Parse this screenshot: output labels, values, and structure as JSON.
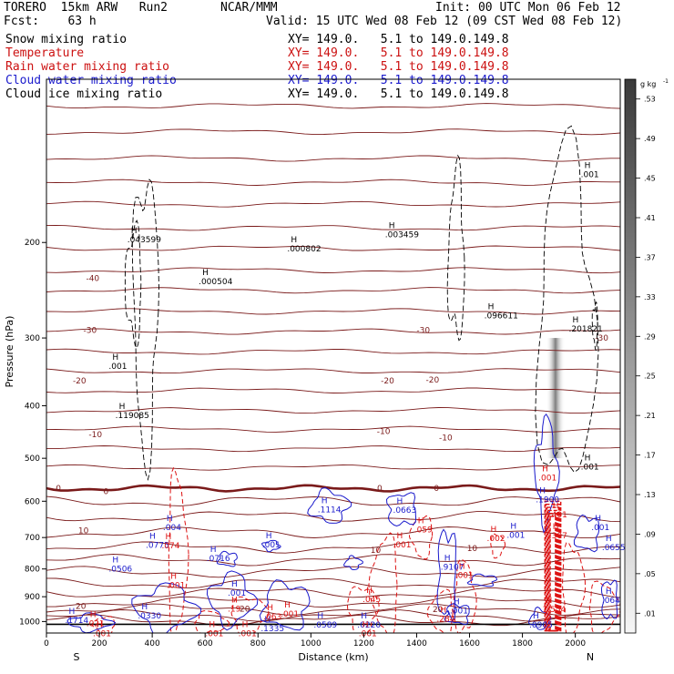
{
  "header": {
    "left1": "TORERO  15km ARW   Run2",
    "center1": "NCAR/MMM",
    "right1": "Init: 00 UTC Mon 06 Feb 12",
    "left2": "Fcst:    63 h",
    "right2": "Valid: 15 UTC Wed 08 Feb 12 (09 CST Wed 08 Feb 12)"
  },
  "legend": [
    {
      "name": "Snow mixing ratio",
      "xy": "XY= 149.0.   5.1 to 149.0.149.8",
      "color": "#000000"
    },
    {
      "name": "Temperature",
      "xy": "XY= 149.0.   5.1 to 149.0.149.8",
      "color": "#cc1111"
    },
    {
      "name": "Rain water mixing ratio",
      "xy": "XY= 149.0.   5.1 to 149.0.149.8",
      "color": "#cc1111"
    },
    {
      "name": "Cloud water mixing ratio",
      "xy": "XY= 149.0.   5.1 to 149.0.149.8",
      "color": "#1a1acc"
    },
    {
      "name": "Cloud ice mixing ratio",
      "xy": "XY= 149.0.   5.1 to 149.0.149.8",
      "color": "#000000"
    }
  ],
  "colors": {
    "temperature_isotherm": "#7a1a1a",
    "freezing_line": "#7a1a1a",
    "rain": "#dd1111",
    "cloud_water": "#1a1acc",
    "snow_shading": "#555555",
    "cloud_ice": "#000000"
  },
  "chart_data": {
    "type": "cross-section",
    "xlabel": "Distance (km)",
    "ylabel": "Pressure (hPa)",
    "xlim": [
      0,
      2170
    ],
    "ylim": [
      1050,
      100
    ],
    "y_log": true,
    "x_ticks": [
      0,
      200,
      400,
      600,
      800,
      1000,
      1200,
      1400,
      1600,
      1800,
      2000
    ],
    "y_ticks": [
      200,
      300,
      400,
      500,
      600,
      700,
      800,
      900,
      1000
    ],
    "x_end_labels": {
      "left": "S",
      "right": "N"
    },
    "colorbar": {
      "unit": "g kg",
      "unit_exp": "-1",
      "labels": [
        ".53",
        ".49",
        ".45",
        ".41",
        ".37",
        ".33",
        ".29",
        ".25",
        ".21",
        ".17",
        ".13",
        ".09",
        ".05",
        ".01"
      ]
    },
    "isotherm_labels": [
      {
        "x": 175,
        "p": 233,
        "t": "-40"
      },
      {
        "x": 165,
        "p": 290,
        "t": "-30"
      },
      {
        "x": 1425,
        "p": 290,
        "t": "-30"
      },
      {
        "x": 2100,
        "p": 300,
        "t": "-30"
      },
      {
        "x": 125,
        "p": 360,
        "t": "-20"
      },
      {
        "x": 1290,
        "p": 360,
        "t": "-20"
      },
      {
        "x": 1460,
        "p": 358,
        "t": "-20"
      },
      {
        "x": 185,
        "p": 452,
        "t": "-10"
      },
      {
        "x": 1275,
        "p": 446,
        "t": "-10"
      },
      {
        "x": 1510,
        "p": 458,
        "t": "-10"
      },
      {
        "x": 45,
        "p": 568,
        "t": "0"
      },
      {
        "x": 225,
        "p": 576,
        "t": "0"
      },
      {
        "x": 1260,
        "p": 568,
        "t": "0"
      },
      {
        "x": 1475,
        "p": 568,
        "t": "0"
      },
      {
        "x": 140,
        "p": 680,
        "t": "10"
      },
      {
        "x": 1245,
        "p": 738,
        "t": "10"
      },
      {
        "x": 1610,
        "p": 733,
        "t": "10"
      },
      {
        "x": 130,
        "p": 937,
        "t": "20"
      },
      {
        "x": 750,
        "p": 948,
        "t": "20"
      },
      {
        "x": 1480,
        "p": 950,
        "t": "20"
      }
    ],
    "maxima_labels": [
      {
        "x": 340,
        "p": 199,
        "v": ".043599",
        "color": "black"
      },
      {
        "x": 610,
        "p": 238,
        "v": ".000504",
        "color": "black"
      },
      {
        "x": 945,
        "p": 207,
        "v": ".000802",
        "color": "black"
      },
      {
        "x": 1315,
        "p": 195,
        "v": ".003459",
        "color": "black"
      },
      {
        "x": 1690,
        "p": 275,
        "v": ".096611",
        "color": "black"
      },
      {
        "x": 2010,
        "p": 291,
        "v": ".201821",
        "color": "black"
      },
      {
        "x": 2055,
        "p": 151,
        "v": ".001",
        "color": "black"
      },
      {
        "x": 270,
        "p": 341,
        "v": ".001",
        "color": "black"
      },
      {
        "x": 295,
        "p": 420,
        "v": ".119085",
        "color": "black"
      },
      {
        "x": 2055,
        "p": 522,
        "v": ".001",
        "color": "black"
      },
      {
        "x": 1060,
        "p": 626,
        "v": ".1114",
        "color": "blue"
      },
      {
        "x": 1345,
        "p": 628,
        "v": ".0663",
        "color": "blue"
      },
      {
        "x": 475,
        "p": 676,
        "v": ".004",
        "color": "blue"
      },
      {
        "x": 410,
        "p": 729,
        "v": ".0775",
        "color": "blue"
      },
      {
        "x": 640,
        "p": 771,
        "v": ".0716",
        "color": "blue"
      },
      {
        "x": 850,
        "p": 727,
        "v": ".001",
        "color": "blue"
      },
      {
        "x": 270,
        "p": 806,
        "v": ".0506",
        "color": "blue"
      },
      {
        "x": 1525,
        "p": 800,
        "v": ".9107",
        "color": "blue"
      },
      {
        "x": 1775,
        "p": 698,
        "v": ".001",
        "color": "blue"
      },
      {
        "x": 2095,
        "p": 676,
        "v": ".001",
        "color": "blue"
      },
      {
        "x": 2135,
        "p": 735,
        "v": ".0655",
        "color": "blue"
      },
      {
        "x": 720,
        "p": 892,
        "v": ".001",
        "color": "blue"
      },
      {
        "x": 380,
        "p": 983,
        "v": ".0330",
        "color": "blue"
      },
      {
        "x": 105,
        "p": 1002,
        "v": ".1714",
        "color": "blue"
      },
      {
        "x": 1045,
        "p": 1021,
        "v": ".0589",
        "color": "blue"
      },
      {
        "x": 1210,
        "p": 1021,
        "v": ".0220",
        "color": "blue"
      },
      {
        "x": 845,
        "p": 1038,
        "v": ".1335",
        "color": "blue"
      },
      {
        "x": 1560,
        "p": 963,
        "v": ".001",
        "color": "blue"
      },
      {
        "x": 1860,
        "p": 1021,
        "v": ".0905",
        "color": "blue"
      },
      {
        "x": 2135,
        "p": 920,
        "v": ".064",
        "color": "blue"
      },
      {
        "x": 1885,
        "p": 600,
        "v": ".1900",
        "color": "blue"
      },
      {
        "x": 1425,
        "p": 682,
        "v": ".059",
        "color": "red"
      },
      {
        "x": 1700,
        "p": 708,
        "v": ".002",
        "color": "red"
      },
      {
        "x": 470,
        "p": 730,
        "v": ".074",
        "color": "red"
      },
      {
        "x": 1345,
        "p": 727,
        "v": ".001",
        "color": "red"
      },
      {
        "x": 1580,
        "p": 828,
        "v": ".001",
        "color": "red"
      },
      {
        "x": 490,
        "p": 864,
        "v": ".001",
        "color": "red"
      },
      {
        "x": 1230,
        "p": 917,
        "v": ".045",
        "color": "red"
      },
      {
        "x": 720,
        "p": 955,
        "v": ".19",
        "color": "red"
      },
      {
        "x": 920,
        "p": 975,
        "v": ".001",
        "color": "red"
      },
      {
        "x": 855,
        "p": 987,
        "v": ".063",
        "color": "red"
      },
      {
        "x": 1510,
        "p": 997,
        "v": ".284",
        "color": "red"
      },
      {
        "x": 1910,
        "p": 957,
        "v": "1.554",
        "color": "red"
      },
      {
        "x": 185,
        "p": 1017,
        "v": ".021",
        "color": "red"
      },
      {
        "x": 210,
        "p": 1060,
        "v": ".001",
        "color": "red"
      },
      {
        "x": 635,
        "p": 1060,
        "v": ".001",
        "color": "red"
      },
      {
        "x": 760,
        "p": 1060,
        "v": ".001",
        "color": "red"
      },
      {
        "x": 1215,
        "p": 1060,
        "v": ".001",
        "color": "red"
      },
      {
        "x": 1895,
        "p": 547,
        "v": ".001",
        "color": "red"
      },
      {
        "x": 1935,
        "p": 640,
        "v": ".401",
        "color": "red"
      },
      {
        "x": 1935,
        "p": 700,
        "v": ".307",
        "color": "red"
      }
    ]
  }
}
